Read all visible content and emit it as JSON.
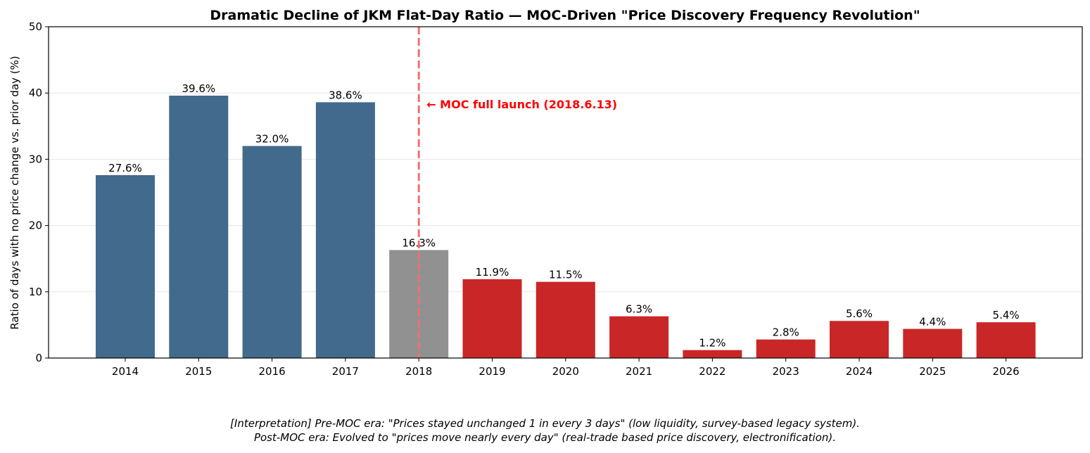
{
  "chart_data": {
    "type": "bar",
    "title": "Dramatic Decline of JKM Flat-Day Ratio — MOC-Driven \"Price Discovery Frequency Revolution\"",
    "xlabel": "",
    "ylabel": "Ratio of days with no price change vs. prior day (%)",
    "ylim": [
      0,
      50
    ],
    "yticks": [
      0,
      10,
      20,
      30,
      40,
      50
    ],
    "grid": "horizontal",
    "categories": [
      "2014",
      "2015",
      "2016",
      "2017",
      "2018",
      "2019",
      "2020",
      "2021",
      "2022",
      "2023",
      "2024",
      "2025",
      "2026"
    ],
    "values": [
      27.6,
      39.6,
      32.0,
      38.6,
      16.3,
      11.9,
      11.5,
      6.3,
      1.2,
      2.8,
      5.6,
      4.4,
      5.4
    ],
    "data_labels": [
      "27.6%",
      "39.6%",
      "32.0%",
      "38.6%",
      "16.3%",
      "11.9%",
      "11.5%",
      "6.3%",
      "1.2%",
      "2.8%",
      "5.6%",
      "4.4%",
      "5.4%"
    ],
    "bar_colors": [
      "#426a8d",
      "#426a8d",
      "#426a8d",
      "#426a8d",
      "#919191",
      "#c92727",
      "#c92727",
      "#c92727",
      "#c92727",
      "#c92727",
      "#c92727",
      "#c92727",
      "#c92727"
    ],
    "annotation": {
      "text": "← MOC full launch (2018.6.13)",
      "at_category": "2018",
      "line_color": "#f07070",
      "text_color": "#ff0000"
    }
  },
  "caption": {
    "line1": "[Interpretation] Pre-MOC era: \"Prices stayed unchanged 1 in every 3 days\" (low liquidity, survey-based legacy system).",
    "line2": "Post-MOC era: Evolved to \"prices move nearly every day\" (real-trade based price discovery, electronification)."
  }
}
